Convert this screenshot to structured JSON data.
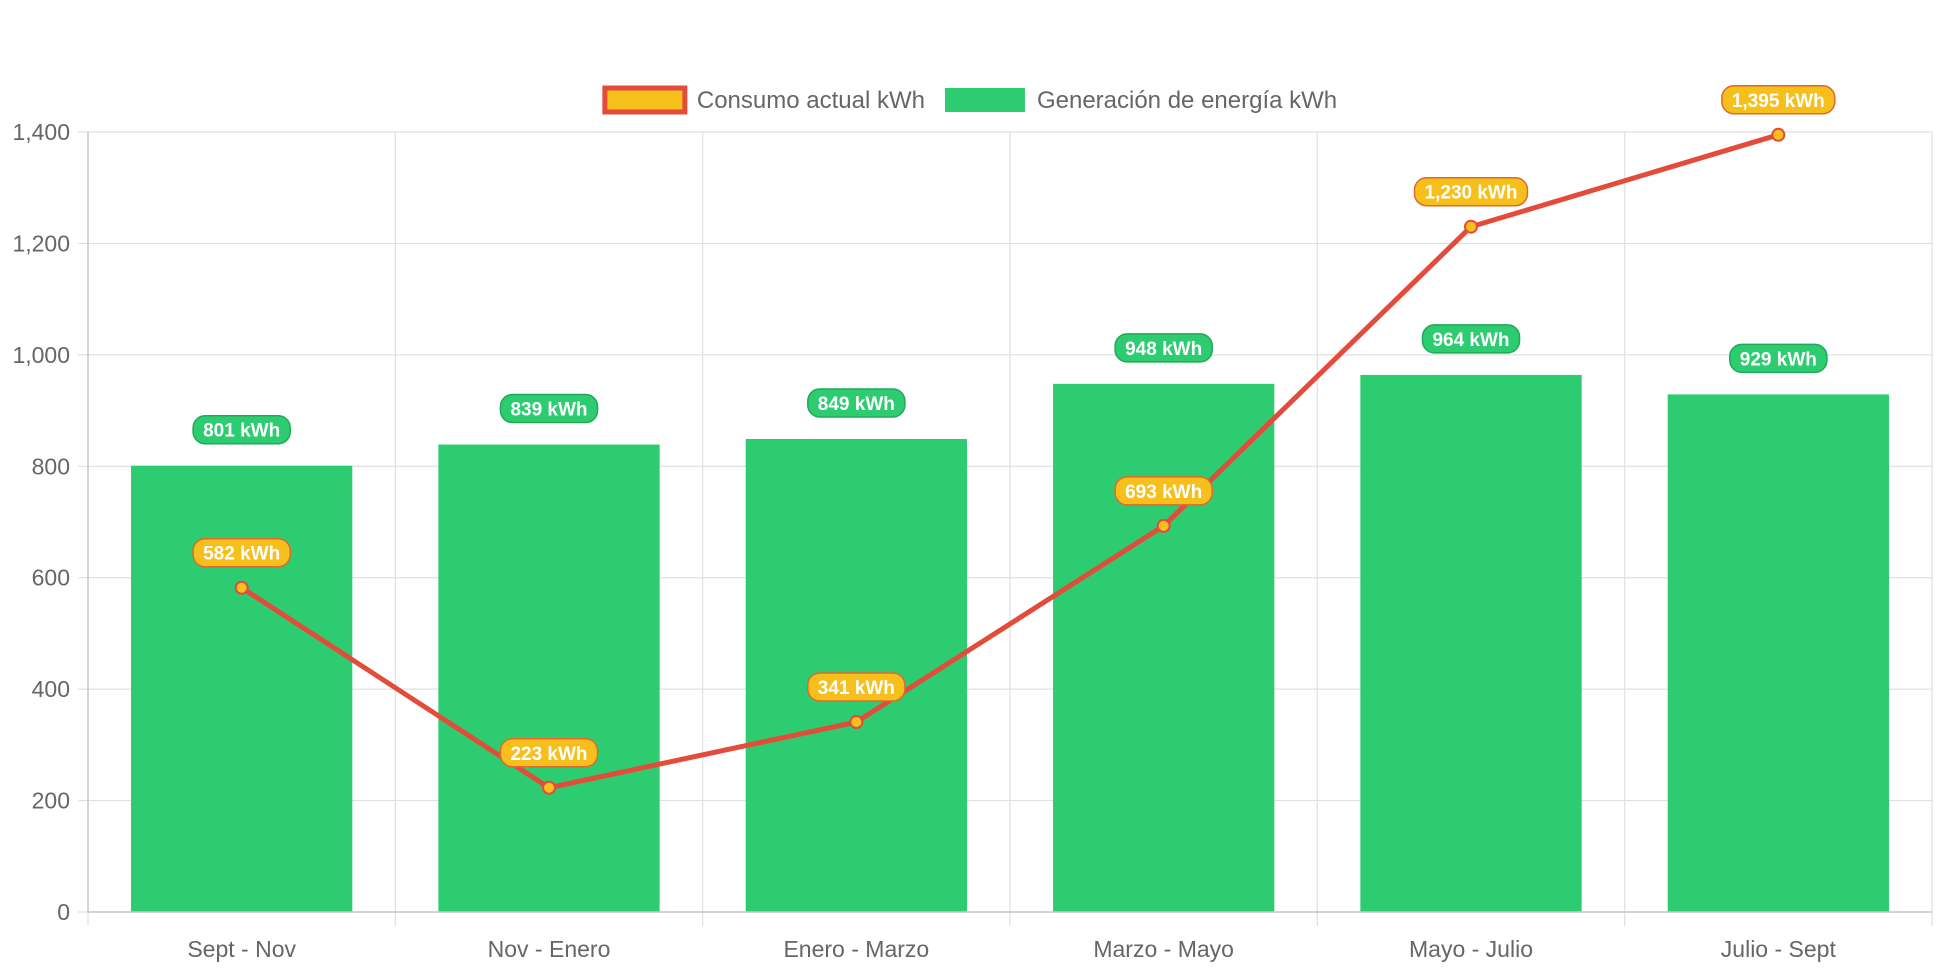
{
  "chart_data": {
    "type": "bar",
    "categories": [
      "Sept - Nov",
      "Nov - Enero",
      "Enero - Marzo",
      "Marzo - Mayo",
      "Mayo - Julio",
      "Julio - Sept"
    ],
    "series": [
      {
        "name": "Consumo actual kWh",
        "type": "line",
        "values": [
          582,
          223,
          341,
          693,
          1230,
          1395
        ],
        "labels": [
          "582 kWh",
          "223 kWh",
          "341 kWh",
          "693 kWh",
          "1,230 kWh",
          "1,395 kWh"
        ],
        "line_color": "#e34b3a",
        "fill_color": "#f7bf1b"
      },
      {
        "name": "Generación de energía kWh",
        "type": "bar",
        "values": [
          801,
          839,
          849,
          948,
          964,
          929
        ],
        "labels": [
          "801 kWh",
          "839 kWh",
          "849 kWh",
          "948 kWh",
          "964 kWh",
          "929 kWh"
        ],
        "color": "#2ecc71"
      }
    ],
    "ylim": [
      0,
      1400
    ],
    "yticks": [
      0,
      200,
      400,
      600,
      800,
      1000,
      1200,
      1400
    ],
    "ytick_labels": [
      "0",
      "200",
      "400",
      "600",
      "800",
      "1,000",
      "1,200",
      "1,400"
    ],
    "grid": true,
    "legend_position": "top",
    "xlabel": "",
    "ylabel": "",
    "title": ""
  }
}
